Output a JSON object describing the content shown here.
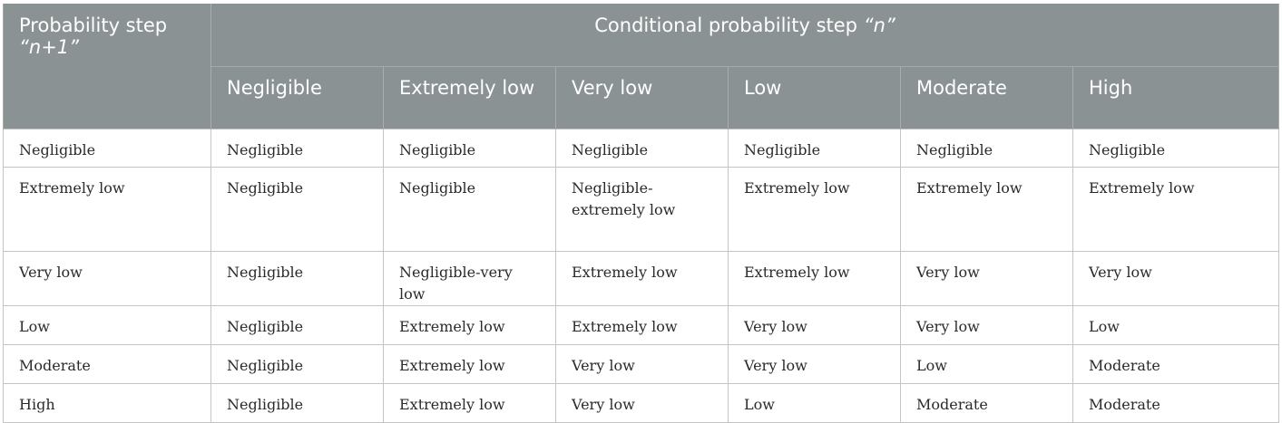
{
  "table": {
    "row_header_label": "Probability step “n+1”",
    "row_header_parts": {
      "prefix": "Probability step ",
      "open_quote": "“",
      "var": "n+1",
      "close_quote": "”"
    },
    "group_header_label": "Conditional probability step “n”",
    "group_header_parts": {
      "prefix": "Conditional probability step ",
      "open_quote": "“",
      "var": "n",
      "close_quote": "”"
    },
    "columns": [
      "Negligible",
      "Extremely low",
      "Very low",
      "Low",
      "Moderate",
      "High"
    ],
    "rows": [
      {
        "label": "Negligible",
        "cells": [
          "Negligible",
          "Negligible",
          "Negligible",
          "Negligible",
          "Negligible",
          "Negligible"
        ]
      },
      {
        "label": "Extremely low",
        "cells": [
          "Negligible",
          "Negligible",
          "Negligible-extremely low",
          "Extremely low",
          "Extremely low",
          "Extremely low"
        ]
      },
      {
        "label": "Very low",
        "cells": [
          "Negligible",
          "Negligible-very low",
          "Extremely low",
          "Extremely low",
          "Very low",
          "Very low"
        ]
      },
      {
        "label": "Low",
        "cells": [
          "Negligible",
          "Extremely low",
          "Extremely low",
          "Very low",
          "Very low",
          "Low"
        ]
      },
      {
        "label": "Moderate",
        "cells": [
          "Negligible",
          "Extremely low",
          "Very low",
          "Very low",
          "Low",
          "Moderate"
        ]
      },
      {
        "label": "High",
        "cells": [
          "Negligible",
          "Extremely low",
          "Very low",
          "Low",
          "Moderate",
          "Moderate"
        ]
      }
    ]
  }
}
